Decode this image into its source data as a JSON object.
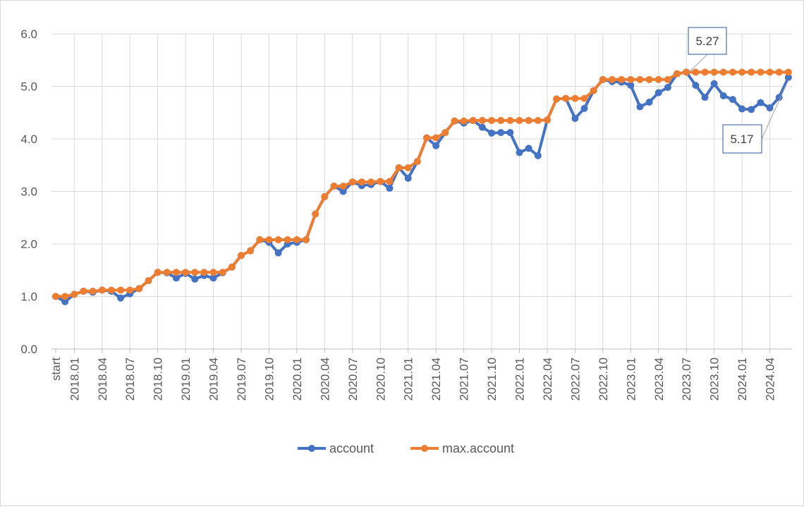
{
  "chart_data": {
    "type": "line",
    "title": "",
    "xlabel": "",
    "ylabel": "",
    "ylim": [
      0,
      6
    ],
    "y_ticks": [
      "0.0",
      "1.0",
      "2.0",
      "3.0",
      "4.0",
      "5.0",
      "6.0"
    ],
    "x_ticks": [
      "start",
      "2018.01",
      "2018.04",
      "2018.07",
      "2018.10",
      "2019.01",
      "2019.04",
      "2019.07",
      "2019.10",
      "2020.01",
      "2020.04",
      "2020.07",
      "2020.10",
      "2021.01",
      "2021.04",
      "2021.07",
      "2021.10",
      "2022.01",
      "2022.04",
      "2022.07",
      "2022.10",
      "2023.01",
      "2023.04",
      "2023.07",
      "2023.10",
      "2024.01",
      "2024.04"
    ],
    "grid": "vertical and horizontal",
    "legend": "bottom",
    "series": [
      {
        "name": "account",
        "color": "#4472c4",
        "values": [
          1.0,
          0.9,
          1.04,
          1.1,
          1.08,
          1.12,
          1.1,
          0.97,
          1.05,
          1.15,
          1.3,
          1.46,
          1.45,
          1.35,
          1.44,
          1.33,
          1.4,
          1.35,
          1.45,
          1.56,
          1.78,
          1.87,
          2.08,
          2.03,
          1.83,
          2.0,
          2.03,
          2.08,
          2.57,
          2.9,
          3.1,
          3.0,
          3.18,
          3.11,
          3.13,
          3.19,
          3.06,
          3.45,
          3.25,
          3.57,
          4.02,
          3.87,
          4.12,
          4.34,
          4.3,
          4.35,
          4.22,
          4.11,
          4.12,
          4.12,
          3.74,
          3.82,
          3.68,
          4.36,
          4.76,
          4.77,
          4.39,
          4.58,
          4.92,
          5.13,
          5.09,
          5.08,
          5.02,
          4.61,
          4.7,
          4.88,
          4.98,
          5.24,
          5.27,
          5.02,
          4.79,
          5.05,
          4.82,
          4.75,
          4.57,
          4.56,
          4.69,
          4.59,
          4.79,
          5.17
        ]
      },
      {
        "name": "max.account",
        "color": "#ed7d31",
        "values": [
          1.0,
          1.0,
          1.04,
          1.1,
          1.1,
          1.12,
          1.12,
          1.12,
          1.12,
          1.15,
          1.3,
          1.46,
          1.46,
          1.46,
          1.46,
          1.46,
          1.46,
          1.46,
          1.46,
          1.56,
          1.78,
          1.87,
          2.08,
          2.08,
          2.08,
          2.08,
          2.08,
          2.08,
          2.57,
          2.9,
          3.1,
          3.1,
          3.18,
          3.18,
          3.18,
          3.19,
          3.19,
          3.45,
          3.45,
          3.57,
          4.02,
          4.02,
          4.12,
          4.34,
          4.34,
          4.35,
          4.35,
          4.35,
          4.35,
          4.35,
          4.35,
          4.35,
          4.35,
          4.36,
          4.76,
          4.77,
          4.77,
          4.77,
          4.92,
          5.13,
          5.13,
          5.13,
          5.13,
          5.13,
          5.13,
          5.13,
          5.13,
          5.24,
          5.27,
          5.27,
          5.27,
          5.27,
          5.27,
          5.27,
          5.27,
          5.27,
          5.27,
          5.27,
          5.27,
          5.27
        ]
      }
    ],
    "annotations": [
      {
        "text": "5.27",
        "series": "max.account"
      },
      {
        "text": "5.17",
        "series": "account"
      }
    ]
  }
}
